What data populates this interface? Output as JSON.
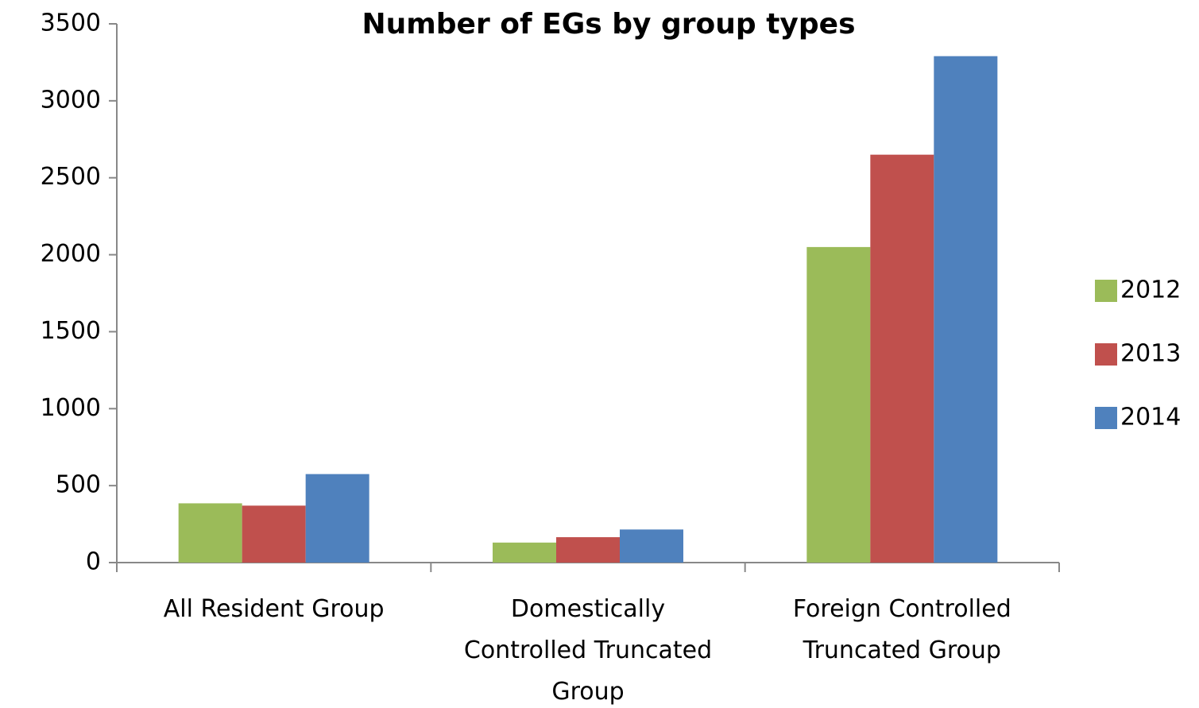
{
  "chart_data": {
    "type": "bar",
    "title": "Number of EGs by group types",
    "categories": [
      "All Resident Group",
      "Domestically Controlled Truncated Group",
      "Foreign Controlled Truncated Group"
    ],
    "series": [
      {
        "name": "2012",
        "color": "#9bbb59",
        "values": [
          385,
          130,
          2050
        ]
      },
      {
        "name": "2013",
        "color": "#c0504d",
        "values": [
          370,
          165,
          2650
        ]
      },
      {
        "name": "2014",
        "color": "#4f81bd",
        "values": [
          575,
          215,
          3290
        ]
      }
    ],
    "ylim": [
      0,
      3500
    ],
    "yticks": [
      0,
      500,
      1000,
      1500,
      2000,
      2500,
      3000,
      3500
    ],
    "grid": false,
    "legend": "right"
  }
}
